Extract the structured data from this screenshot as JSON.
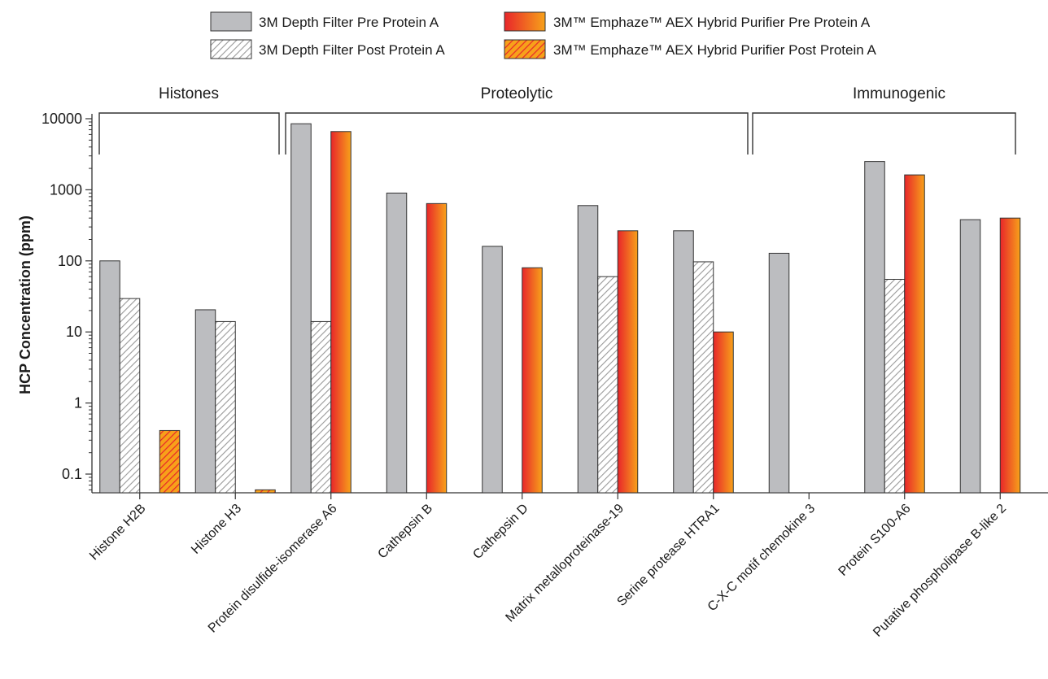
{
  "chart_data": {
    "type": "bar",
    "ylabel": "HCP Concentration (ppm)",
    "xlabel": "",
    "yscale": "log",
    "ylim": [
      0.05,
      10000
    ],
    "yticks": [
      "0.1",
      "1",
      "10",
      "100",
      "1000",
      "10000"
    ],
    "grid": false,
    "legend_position": "top",
    "groups": [
      {
        "label": "Histones",
        "categories": [
          0,
          1
        ]
      },
      {
        "label": "Proteolytic",
        "categories": [
          2,
          3,
          4,
          5,
          6
        ]
      },
      {
        "label": "Immunogenic",
        "categories": [
          7,
          8,
          9
        ]
      }
    ],
    "categories": [
      "Histone H2B",
      "Histone H3",
      "Protein disulfide-isomerase A6",
      "Cathepsin B",
      "Cathepsin D",
      "Matrix metalloproteinase-19",
      "Serine protease HTRA1",
      "C-X-C motif chemokine 3",
      "Protein S100-A6",
      "Putative phospholipase B-like 2"
    ],
    "series": [
      {
        "name": "3M Depth Filter Pre Protein A",
        "style": "gray",
        "values": [
          100,
          20.5,
          8500,
          900,
          160,
          600,
          265,
          128,
          2500,
          380
        ]
      },
      {
        "name": "3M Depth Filter Post Protein A",
        "style": "gray-hatch",
        "values": [
          29.5,
          14,
          14,
          null,
          null,
          60,
          97,
          null,
          55,
          null
        ]
      },
      {
        "name": "3M™ Emphaze™ AEX Hybrid Purifier Pre Protein A",
        "style": "orange-gradient",
        "values": [
          null,
          null,
          6600,
          640,
          80,
          265,
          10,
          null,
          1620,
          400
        ]
      },
      {
        "name": "3M™ Emphaze™ AEX Hybrid Purifier Post Protein A",
        "style": "orange-hatch",
        "values": [
          0.41,
          0.06,
          null,
          null,
          null,
          null,
          null,
          null,
          null,
          null
        ]
      }
    ]
  },
  "colors": {
    "gray_fill": "#bcbdc0",
    "orange_start": "#e8262a",
    "orange_end": "#f7a11a",
    "hatch_gray": "#9a9a9a",
    "outline": "#333333"
  }
}
